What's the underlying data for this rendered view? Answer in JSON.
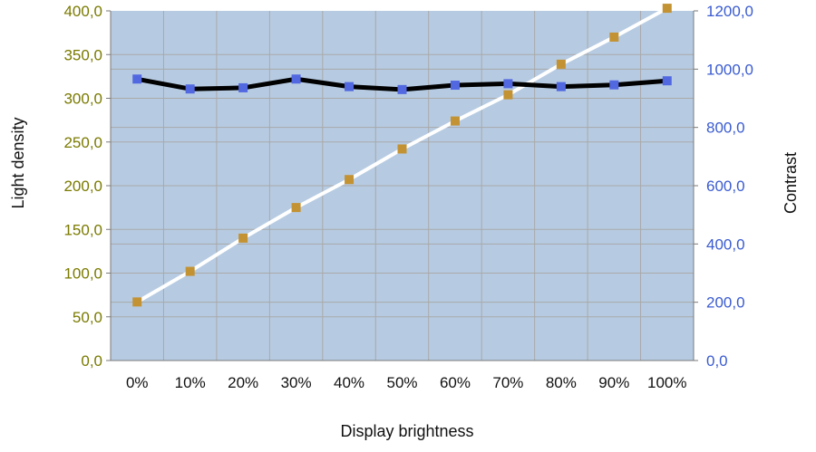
{
  "chart_data": {
    "type": "line",
    "title": "",
    "xlabel": "Display brightness",
    "ylabel_left": "Light density",
    "ylabel_right": "Contrast",
    "categories": [
      "0%",
      "10%",
      "20%",
      "30%",
      "40%",
      "50%",
      "60%",
      "70%",
      "80%",
      "90%",
      "100%"
    ],
    "ylim_left": [
      0,
      400
    ],
    "ylim_right": [
      0,
      1200
    ],
    "yticks_left": [
      "0,0",
      "50,0",
      "100,0",
      "150,0",
      "200,0",
      "250,0",
      "300,0",
      "350,0",
      "400,0"
    ],
    "yticks_right": [
      "0,0",
      "200,0",
      "400,0",
      "600,0",
      "800,0",
      "1000,0",
      "1200,0"
    ],
    "grid": true,
    "legend": "none",
    "colors": {
      "plot_bg": "#b6cbe2",
      "grid": "#a9a9a9",
      "left_axis_text": "#7a7a00",
      "right_axis_text": "#3a5bd0",
      "light_line": "#ffffff",
      "light_marker": "#c39232",
      "contrast_line": "#000000",
      "contrast_marker": "#5268e0"
    },
    "series": [
      {
        "axis": "left",
        "values": [
          67,
          102,
          140,
          175,
          207,
          242,
          274,
          304,
          339,
          370,
          403
        ]
      },
      {
        "axis": "right",
        "values": [
          966,
          932,
          936,
          966,
          940,
          930,
          945,
          950,
          940,
          946,
          960
        ]
      }
    ]
  }
}
